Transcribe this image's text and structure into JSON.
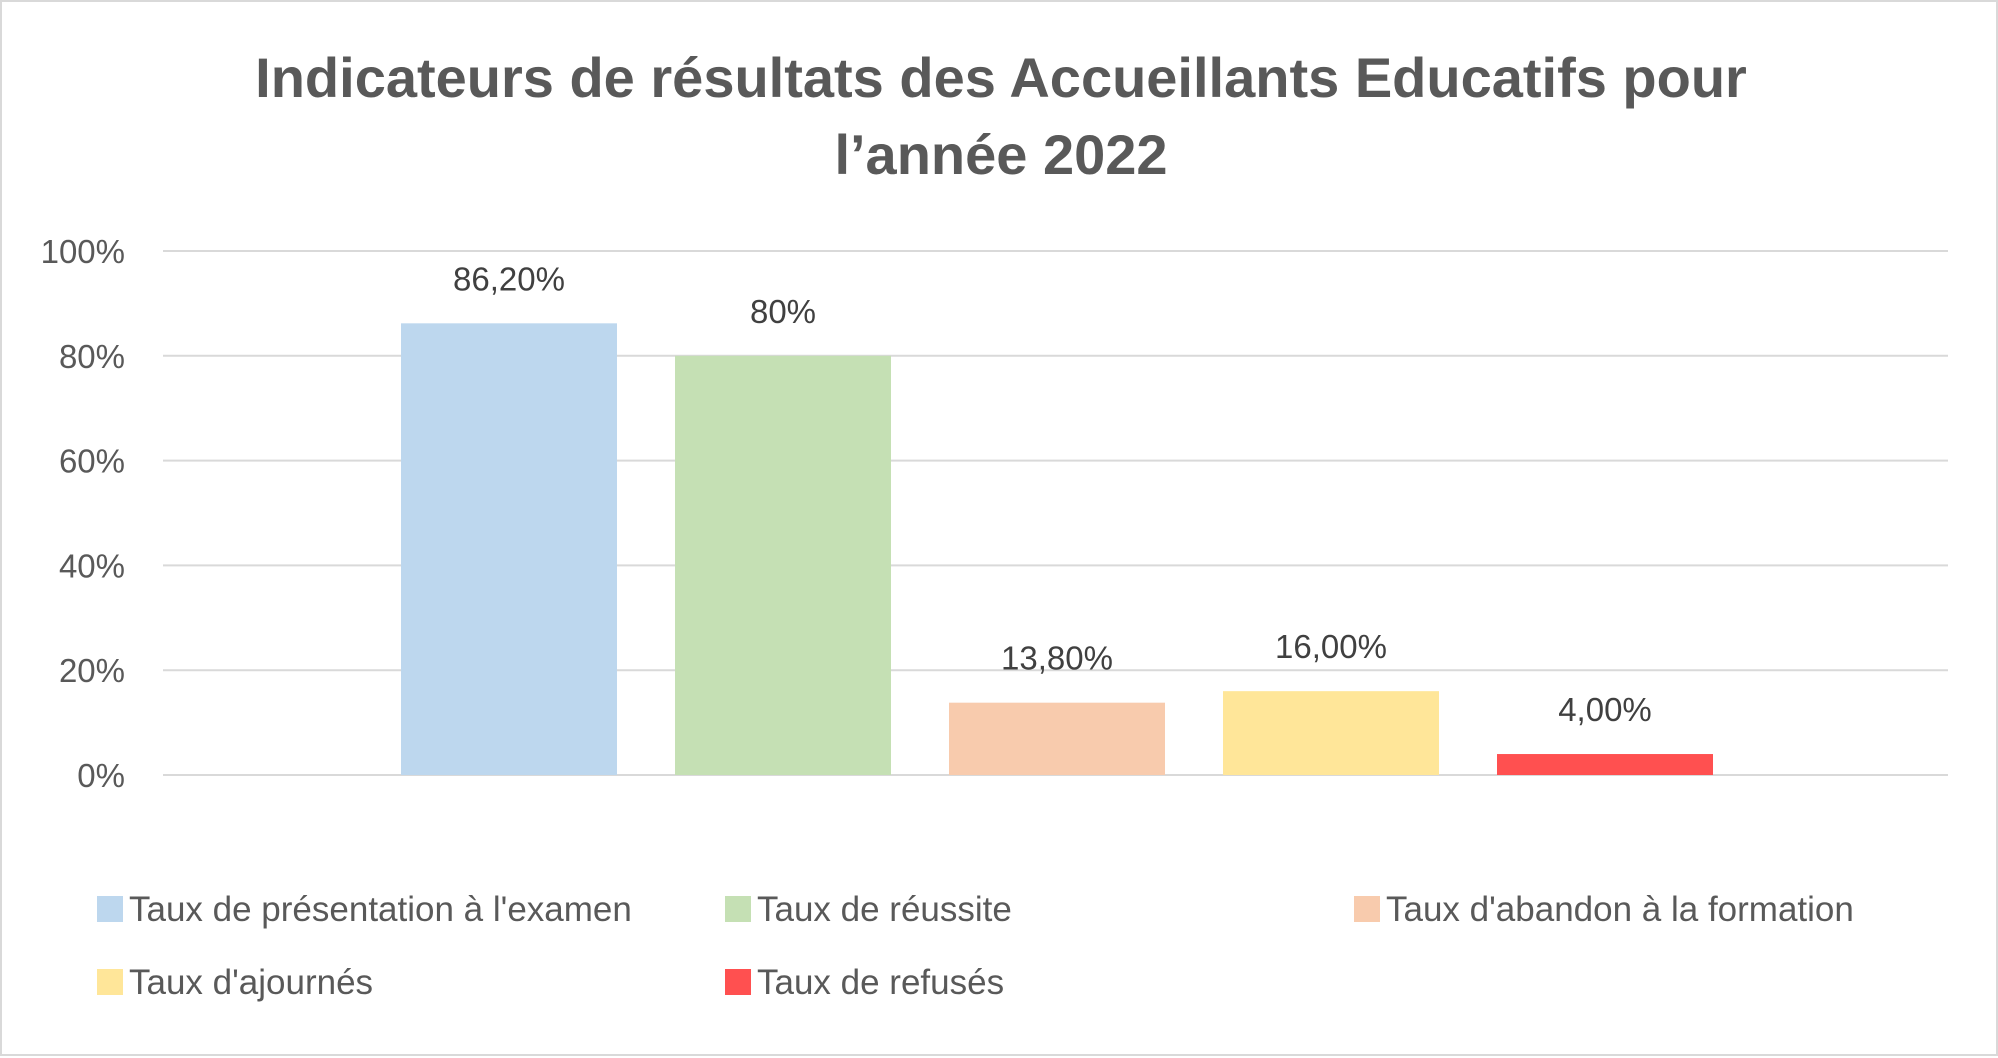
{
  "chart_data": {
    "type": "bar",
    "title_lines": [
      "Indicateurs de résultats des Accueillants Educatifs pour",
      "l’année 2022"
    ],
    "xlabel": "",
    "ylabel": "",
    "ylim": [
      0,
      100
    ],
    "y_ticks": [
      {
        "value": 0,
        "label": "0%"
      },
      {
        "value": 20,
        "label": "20%"
      },
      {
        "value": 40,
        "label": "40%"
      },
      {
        "value": 60,
        "label": "60%"
      },
      {
        "value": 80,
        "label": "80%"
      },
      {
        "value": 100,
        "label": "100%"
      }
    ],
    "grid": true,
    "legend_position": "bottom",
    "series": [
      {
        "name": "Taux de présentation à l'examen",
        "value": 86.2,
        "label": "86,20%",
        "color": "#bdd7ee"
      },
      {
        "name": "Taux de réussite",
        "value": 80,
        "label": "80%",
        "color": "#c5e0b4"
      },
      {
        "name": "Taux d'abandon à la formation",
        "value": 13.8,
        "label": "13,80%",
        "color": "#f8cbad"
      },
      {
        "name": "Taux d'ajournés",
        "value": 16,
        "label": "16,00%",
        "color": "#ffe699"
      },
      {
        "name": "Taux de refusés",
        "value": 4,
        "label": "4,00%",
        "color": "#ff5050"
      }
    ]
  }
}
